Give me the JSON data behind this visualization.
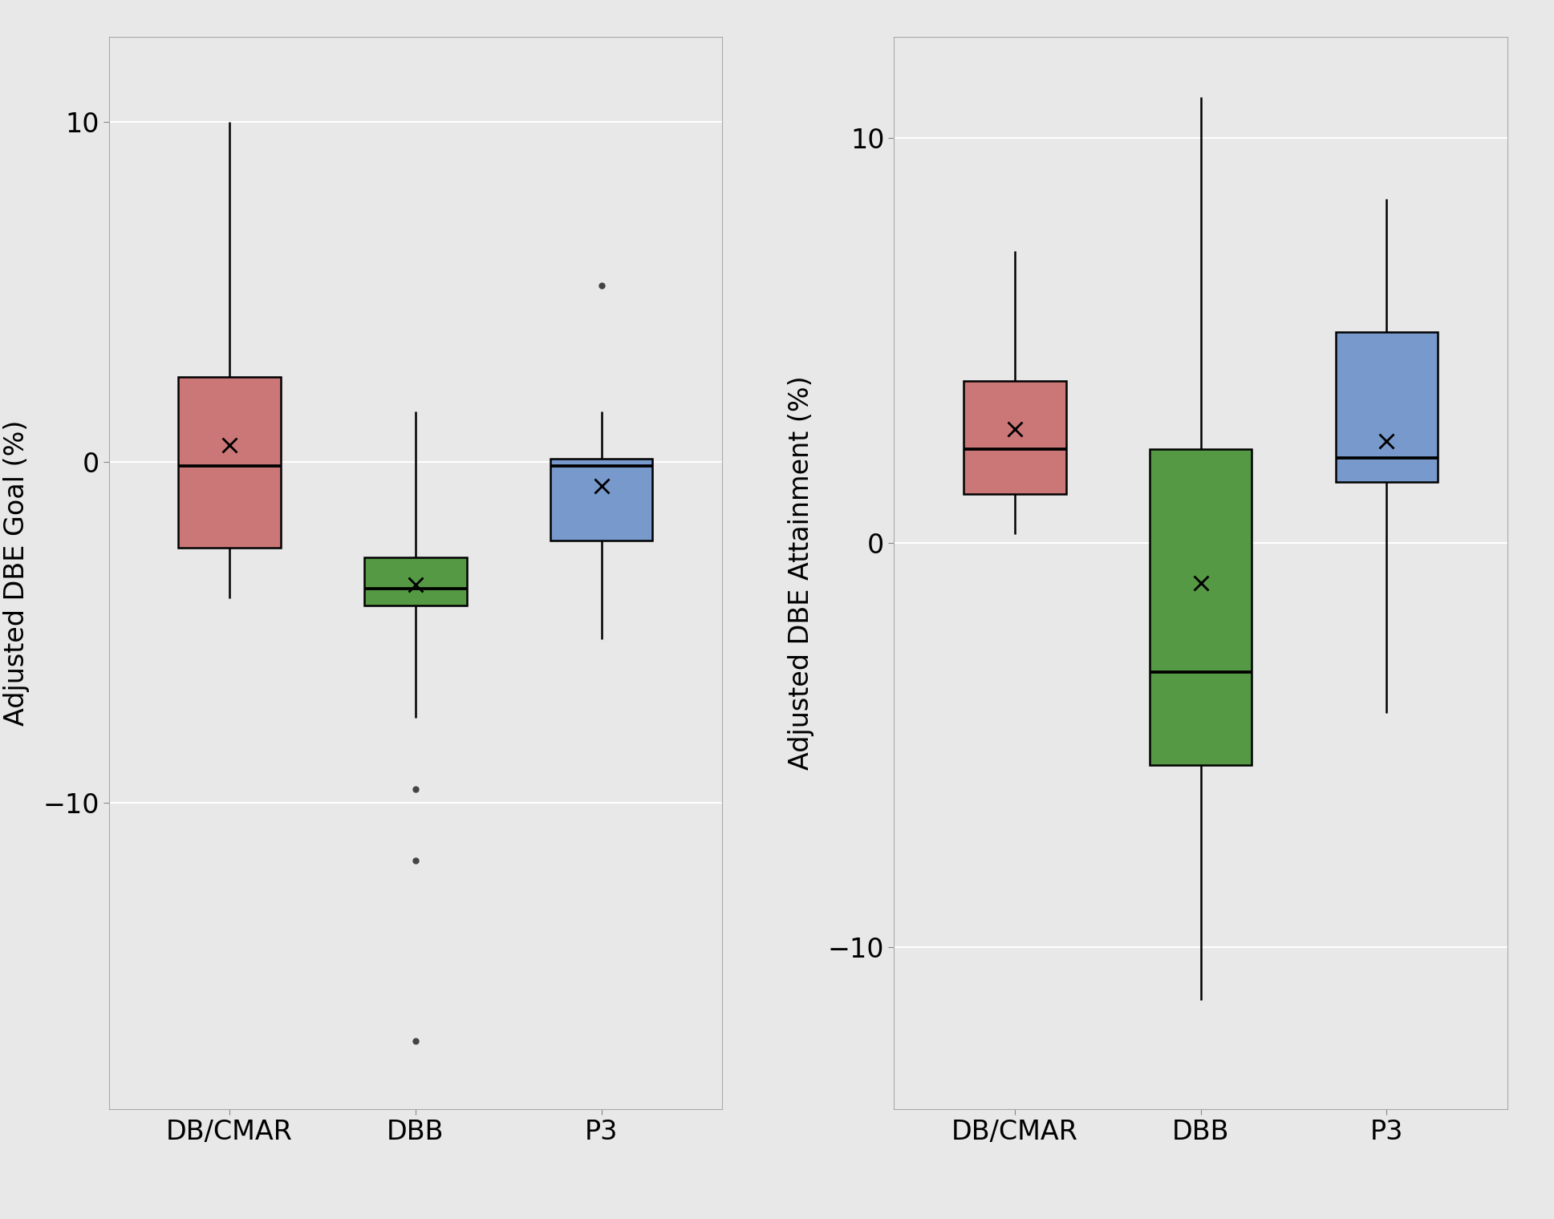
{
  "panel1_ylabel": "Adjusted DBE Goal (%)",
  "panel2_ylabel": "Adjusted DBE Attainment (%)",
  "categories": [
    "DB/CMAR",
    "DBB",
    "P3"
  ],
  "colors": [
    "#CC7777",
    "#559944",
    "#7799CC"
  ],
  "panel1": {
    "DB_CMAR": {
      "q1": -2.5,
      "median": -0.1,
      "q3": 2.5,
      "mean": 0.5,
      "whisker_low": -4.0,
      "whisker_high": 10.0,
      "outliers": []
    },
    "DBB": {
      "q1": -4.2,
      "median": -3.7,
      "q3": -2.8,
      "mean": -3.6,
      "whisker_low": -7.5,
      "whisker_high": 1.5,
      "outliers": [
        -9.6,
        -11.7,
        -17.0
      ]
    },
    "P3": {
      "q1": -2.3,
      "median": -0.1,
      "q3": 0.1,
      "mean": -0.7,
      "whisker_low": -5.2,
      "whisker_high": 1.5,
      "outliers": [
        5.2
      ]
    }
  },
  "panel2": {
    "DB_CMAR": {
      "q1": 1.2,
      "median": 2.3,
      "q3": 4.0,
      "mean": 2.8,
      "whisker_low": 0.2,
      "whisker_high": 7.2,
      "outliers": []
    },
    "DBB": {
      "q1": -5.5,
      "median": -3.2,
      "q3": 2.3,
      "mean": -1.0,
      "whisker_low": -11.3,
      "whisker_high": 11.0,
      "outliers": []
    },
    "P3": {
      "q1": 1.5,
      "median": 2.1,
      "q3": 5.2,
      "mean": 2.5,
      "whisker_low": -4.2,
      "whisker_high": 8.5,
      "outliers": []
    }
  },
  "ylim1": [
    -19,
    12.5
  ],
  "ylim2": [
    -14,
    12.5
  ],
  "yticks": [
    -10,
    0,
    10
  ],
  "background_color": "#E8E8E8",
  "grid_color": "#FFFFFF",
  "box_width": 0.55,
  "linewidth": 1.8
}
